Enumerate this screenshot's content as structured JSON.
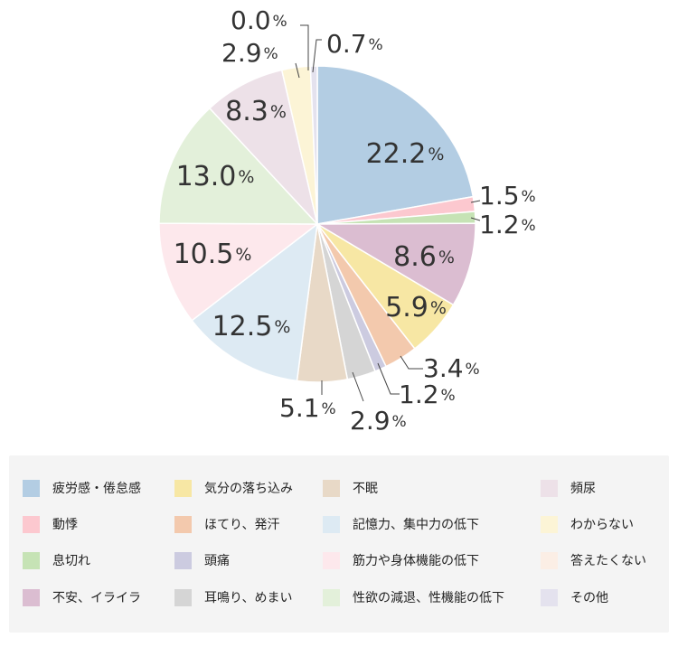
{
  "chart_data": {
    "type": "pie",
    "unit_symbol": "%",
    "slices": [
      {
        "label": "疲労感・倦怠感",
        "value": 22.2,
        "display": "22.2",
        "color": "#b3cde3"
      },
      {
        "label": "動悸",
        "value": 1.5,
        "display": "1.5",
        "color": "#fcc8cf"
      },
      {
        "label": "息切れ",
        "value": 1.2,
        "display": "1.2",
        "color": "#c6e3b5"
      },
      {
        "label": "不安、イライラ",
        "value": 8.6,
        "display": "8.6",
        "color": "#dbbdd1"
      },
      {
        "label": "気分の落ち込み",
        "value": 5.9,
        "display": "5.9",
        "color": "#f7e7a4"
      },
      {
        "label": "ほてり、発汗",
        "value": 3.4,
        "display": "3.4",
        "color": "#f3c9ad"
      },
      {
        "label": "頭痛",
        "value": 1.2,
        "display": "1.2",
        "color": "#cccbe0"
      },
      {
        "label": "耳鳴り、めまい",
        "value": 2.9,
        "display": "2.9",
        "color": "#d5d5d5"
      },
      {
        "label": "不眠",
        "value": 5.1,
        "display": "5.1",
        "color": "#e8d9c7"
      },
      {
        "label": "記憶力、集中力の低下",
        "value": 12.5,
        "display": "12.5",
        "color": "#ddeaf3"
      },
      {
        "label": "筋力や身体機能の低下",
        "value": 10.5,
        "display": "10.5",
        "color": "#fde8ec"
      },
      {
        "label": "性欲の減退、性機能の低下",
        "value": 13.0,
        "display": "13.0",
        "color": "#e3f0da"
      },
      {
        "label": "頻尿",
        "value": 8.3,
        "display": "8.3",
        "color": "#ede1e8"
      },
      {
        "label": "わからない",
        "value": 2.9,
        "display": "2.9",
        "color": "#fcf4d6"
      },
      {
        "label": "答えたくない",
        "value": 0.0,
        "display": "0.0",
        "color": "#fbeee5"
      },
      {
        "label": "その他",
        "value": 0.7,
        "display": "0.7",
        "color": "#e4e2ee"
      }
    ],
    "legend_order": [
      "疲労感・倦怠感",
      "動悸",
      "息切れ",
      "不安、イライラ",
      "気分の落ち込み",
      "ほてり、発汗",
      "頭痛",
      "耳鳴り、めまい",
      "不眠",
      "記憶力、集中力の低下",
      "筋力や身体機能の低下",
      "性欲の減退、性機能の低下",
      "頻尿",
      "わからない",
      "答えたくない",
      "その他"
    ],
    "legend_position": "bottom"
  }
}
